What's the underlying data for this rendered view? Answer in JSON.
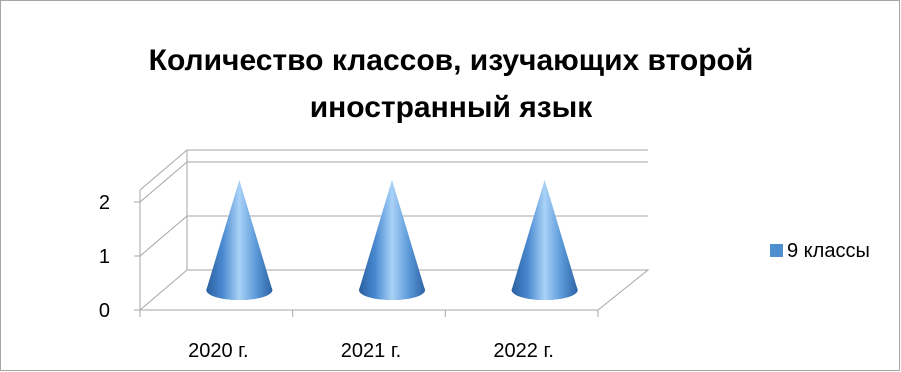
{
  "chart_data": {
    "type": "bar",
    "bar_shape": "cone-3d",
    "title": "Количество классов, изучающих второй иностранный язык",
    "title_lines": [
      "Количество классов, изучающих второй",
      "иностранный язык"
    ],
    "categories": [
      "2020 г.",
      "2021 г.",
      "2022 г."
    ],
    "series": [
      {
        "name": "9 классы",
        "values": [
          2,
          2,
          2
        ],
        "color": "#4f8fd0"
      }
    ],
    "yticks": [
      "0",
      "1",
      "2"
    ],
    "ylim": [
      0,
      2
    ],
    "xlabel": "",
    "ylabel": "",
    "grid": true,
    "legend_position": "right"
  }
}
